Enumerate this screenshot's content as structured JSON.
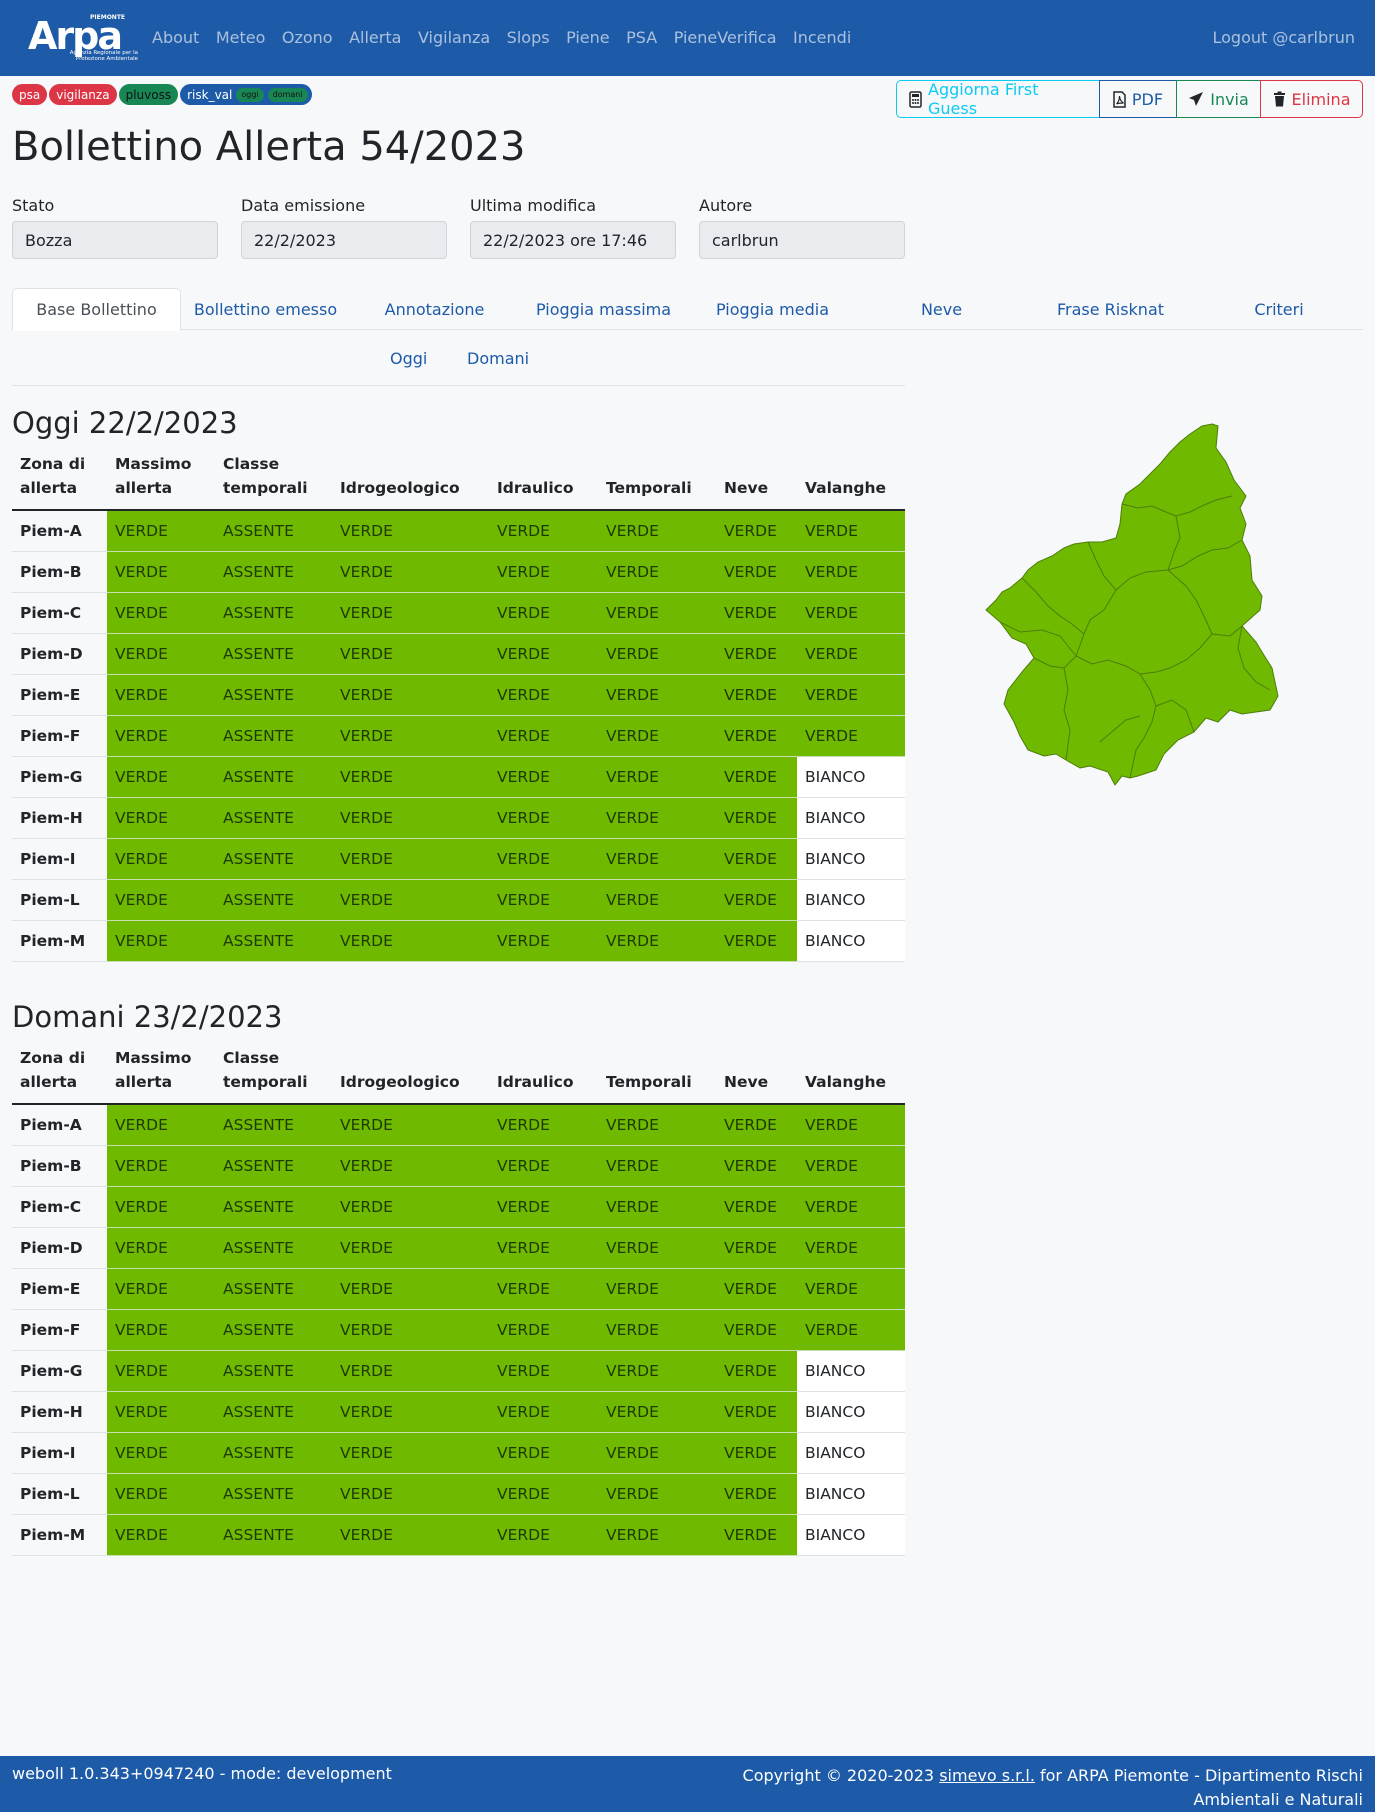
{
  "navbar": {
    "logo": {
      "top": "PIEMONTE",
      "word": "Arpa",
      "sub": "Agenzia Regionale per la Protezione Ambientale"
    },
    "links": [
      "About",
      "Meteo",
      "Ozono",
      "Allerta",
      "Vigilanza",
      "Slops",
      "Piene",
      "PSA",
      "PieneVerifica",
      "Incendi"
    ],
    "logout": "Logout @carlbrun"
  },
  "badges": {
    "psa": "psa",
    "vigilanza": "vigilanza",
    "pluvoss": "pluvoss",
    "risk_val": "risk_val",
    "oggi": "oggi",
    "domani": "domani"
  },
  "actions": {
    "first_guess": "Aggiorna First Guess",
    "pdf": "PDF",
    "invia": "Invia",
    "elimina": "Elimina"
  },
  "page_title": "Bollettino Allerta 54/2023",
  "fields": {
    "stato": {
      "label": "Stato",
      "value": "Bozza"
    },
    "data_emissione": {
      "label": "Data emissione",
      "value": "22/2/2023"
    },
    "ultima_modifica": {
      "label": "Ultima modifica",
      "value": "22/2/2023 ore 17:46"
    },
    "autore": {
      "label": "Autore",
      "value": "carlbrun"
    }
  },
  "tabs": [
    "Base Bollettino",
    "Bollettino emesso",
    "Annotazione",
    "Pioggia massima",
    "Pioggia media",
    "Neve",
    "Frase Risknat",
    "Criteri"
  ],
  "subtabs": [
    "Oggi",
    "Domani"
  ],
  "columns": [
    "Zona di allerta",
    "Massimo allerta",
    "Classe temporali",
    "Idrogeologico",
    "Idraulico",
    "Temporali",
    "Neve",
    "Valanghe"
  ],
  "oggi": {
    "title": "Oggi 22/2/2023",
    "rows": [
      [
        "Piem-A",
        "VERDE",
        "ASSENTE",
        "VERDE",
        "VERDE",
        "VERDE",
        "VERDE",
        "VERDE"
      ],
      [
        "Piem-B",
        "VERDE",
        "ASSENTE",
        "VERDE",
        "VERDE",
        "VERDE",
        "VERDE",
        "VERDE"
      ],
      [
        "Piem-C",
        "VERDE",
        "ASSENTE",
        "VERDE",
        "VERDE",
        "VERDE",
        "VERDE",
        "VERDE"
      ],
      [
        "Piem-D",
        "VERDE",
        "ASSENTE",
        "VERDE",
        "VERDE",
        "VERDE",
        "VERDE",
        "VERDE"
      ],
      [
        "Piem-E",
        "VERDE",
        "ASSENTE",
        "VERDE",
        "VERDE",
        "VERDE",
        "VERDE",
        "VERDE"
      ],
      [
        "Piem-F",
        "VERDE",
        "ASSENTE",
        "VERDE",
        "VERDE",
        "VERDE",
        "VERDE",
        "VERDE"
      ],
      [
        "Piem-G",
        "VERDE",
        "ASSENTE",
        "VERDE",
        "VERDE",
        "VERDE",
        "VERDE",
        "BIANCO"
      ],
      [
        "Piem-H",
        "VERDE",
        "ASSENTE",
        "VERDE",
        "VERDE",
        "VERDE",
        "VERDE",
        "BIANCO"
      ],
      [
        "Piem-I",
        "VERDE",
        "ASSENTE",
        "VERDE",
        "VERDE",
        "VERDE",
        "VERDE",
        "BIANCO"
      ],
      [
        "Piem-L",
        "VERDE",
        "ASSENTE",
        "VERDE",
        "VERDE",
        "VERDE",
        "VERDE",
        "BIANCO"
      ],
      [
        "Piem-M",
        "VERDE",
        "ASSENTE",
        "VERDE",
        "VERDE",
        "VERDE",
        "VERDE",
        "BIANCO"
      ]
    ]
  },
  "domani": {
    "title": "Domani 23/2/2023",
    "rows": [
      [
        "Piem-A",
        "VERDE",
        "ASSENTE",
        "VERDE",
        "VERDE",
        "VERDE",
        "VERDE",
        "VERDE"
      ],
      [
        "Piem-B",
        "VERDE",
        "ASSENTE",
        "VERDE",
        "VERDE",
        "VERDE",
        "VERDE",
        "VERDE"
      ],
      [
        "Piem-C",
        "VERDE",
        "ASSENTE",
        "VERDE",
        "VERDE",
        "VERDE",
        "VERDE",
        "VERDE"
      ],
      [
        "Piem-D",
        "VERDE",
        "ASSENTE",
        "VERDE",
        "VERDE",
        "VERDE",
        "VERDE",
        "VERDE"
      ],
      [
        "Piem-E",
        "VERDE",
        "ASSENTE",
        "VERDE",
        "VERDE",
        "VERDE",
        "VERDE",
        "VERDE"
      ],
      [
        "Piem-F",
        "VERDE",
        "ASSENTE",
        "VERDE",
        "VERDE",
        "VERDE",
        "VERDE",
        "VERDE"
      ],
      [
        "Piem-G",
        "VERDE",
        "ASSENTE",
        "VERDE",
        "VERDE",
        "VERDE",
        "VERDE",
        "BIANCO"
      ],
      [
        "Piem-H",
        "VERDE",
        "ASSENTE",
        "VERDE",
        "VERDE",
        "VERDE",
        "VERDE",
        "BIANCO"
      ],
      [
        "Piem-I",
        "VERDE",
        "ASSENTE",
        "VERDE",
        "VERDE",
        "VERDE",
        "VERDE",
        "BIANCO"
      ],
      [
        "Piem-L",
        "VERDE",
        "ASSENTE",
        "VERDE",
        "VERDE",
        "VERDE",
        "VERDE",
        "BIANCO"
      ],
      [
        "Piem-M",
        "VERDE",
        "ASSENTE",
        "VERDE",
        "VERDE",
        "VERDE",
        "VERDE",
        "BIANCO"
      ]
    ]
  },
  "colors": {
    "verde": "#6fba00",
    "bianco": "#ffffff",
    "navbar": "#1d5aa8"
  },
  "footer": {
    "left": "weboll 1.0.343+0947240 - mode: development",
    "copyright": "Copyright © 2020-2023",
    "company": "simevo s.r.l.",
    "rest": "for ARPA Piemonte - Dipartimento Rischi Ambientali e Naturali"
  }
}
